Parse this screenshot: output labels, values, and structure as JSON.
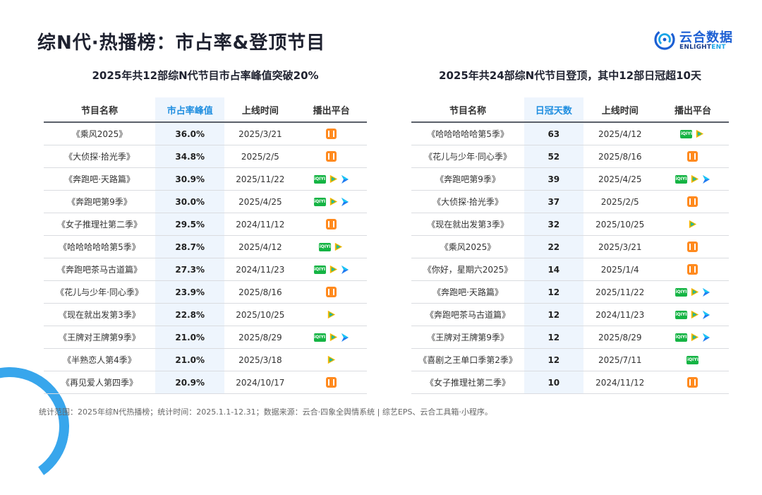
{
  "page": {
    "title": "综N代·热播榜：市占率&登顶节目",
    "footer": "统计范围：2025年综N代热播榜；统计时间：2025.1.1-12.31；数据来源：云合·四象全舆情系统 | 综艺EPS、云合工具箱·小程序。"
  },
  "brand": {
    "name_cn": "云合数据",
    "name_en_a": "ENLIGHT",
    "name_en_b": "ENT"
  },
  "left": {
    "subtitle": "2025年共12部综N代节目市占率峰值突破20%",
    "headers": [
      "节目名称",
      "市占率峰值",
      "上线时间",
      "播出平台"
    ],
    "rows": [
      {
        "name": "《乘风2025》",
        "value": "36.0%",
        "date": "2025/3/21",
        "platforms": [
          "mgtv"
        ]
      },
      {
        "name": "《大侦探·拾光季》",
        "value": "34.8%",
        "date": "2025/2/5",
        "platforms": [
          "mgtv"
        ]
      },
      {
        "name": "《奔跑吧·天路篇》",
        "value": "30.9%",
        "date": "2025/11/22",
        "platforms": [
          "iqiyi",
          "tencent",
          "youku"
        ]
      },
      {
        "name": "《奔跑吧第9季》",
        "value": "30.0%",
        "date": "2025/4/25",
        "platforms": [
          "iqiyi",
          "tencent",
          "youku"
        ]
      },
      {
        "name": "《女子推理社第二季》",
        "value": "29.5%",
        "date": "2024/11/12",
        "platforms": [
          "mgtv"
        ]
      },
      {
        "name": "《哈哈哈哈哈第5季》",
        "value": "28.7%",
        "date": "2025/4/12",
        "platforms": [
          "iqiyi",
          "tencent"
        ]
      },
      {
        "name": "《奔跑吧茶马古道篇》",
        "value": "27.3%",
        "date": "2024/11/23",
        "platforms": [
          "iqiyi",
          "tencent",
          "youku"
        ]
      },
      {
        "name": "《花儿与少年·同心季》",
        "value": "23.9%",
        "date": "2025/8/16",
        "platforms": [
          "mgtv"
        ]
      },
      {
        "name": "《现在就出发第3季》",
        "value": "22.8%",
        "date": "2025/10/25",
        "platforms": [
          "tencent"
        ]
      },
      {
        "name": "《王牌对王牌第9季》",
        "value": "21.0%",
        "date": "2025/8/29",
        "platforms": [
          "iqiyi",
          "tencent",
          "youku"
        ]
      },
      {
        "name": "《半熟恋人第4季》",
        "value": "21.0%",
        "date": "2025/3/18",
        "platforms": [
          "tencent"
        ]
      },
      {
        "name": "《再见爱人第四季》",
        "value": "20.9%",
        "date": "2024/10/17",
        "platforms": [
          "mgtv"
        ]
      }
    ]
  },
  "right": {
    "subtitle": "2025年共24部综N代节目登顶，其中12部日冠超10天",
    "headers": [
      "节目名称",
      "日冠天数",
      "上线时间",
      "播出平台"
    ],
    "rows": [
      {
        "name": "《哈哈哈哈哈第5季》",
        "value": "63",
        "date": "2025/4/12",
        "platforms": [
          "iqiyi",
          "tencent"
        ]
      },
      {
        "name": "《花儿与少年·同心季》",
        "value": "52",
        "date": "2025/8/16",
        "platforms": [
          "mgtv"
        ]
      },
      {
        "name": "《奔跑吧第9季》",
        "value": "39",
        "date": "2025/4/25",
        "platforms": [
          "iqiyi",
          "tencent",
          "youku"
        ]
      },
      {
        "name": "《大侦探·拾光季》",
        "value": "37",
        "date": "2025/2/5",
        "platforms": [
          "mgtv"
        ]
      },
      {
        "name": "《现在就出发第3季》",
        "value": "32",
        "date": "2025/10/25",
        "platforms": [
          "tencent"
        ]
      },
      {
        "name": "《乘风2025》",
        "value": "22",
        "date": "2025/3/21",
        "platforms": [
          "mgtv"
        ]
      },
      {
        "name": "《你好，星期六2025》",
        "value": "14",
        "date": "2025/1/4",
        "platforms": [
          "mgtv"
        ]
      },
      {
        "name": "《奔跑吧·天路篇》",
        "value": "12",
        "date": "2025/11/22",
        "platforms": [
          "iqiyi",
          "tencent",
          "youku"
        ]
      },
      {
        "name": "《奔跑吧茶马古道篇》",
        "value": "12",
        "date": "2024/11/23",
        "platforms": [
          "iqiyi",
          "tencent",
          "youku"
        ]
      },
      {
        "name": "《王牌对王牌第9季》",
        "value": "12",
        "date": "2025/8/29",
        "platforms": [
          "iqiyi",
          "tencent",
          "youku"
        ]
      },
      {
        "name": "《喜剧之王单口季第2季》",
        "value": "12",
        "date": "2025/7/11",
        "platforms": [
          "iqiyi"
        ]
      },
      {
        "name": "《女子推理社第二季》",
        "value": "10",
        "date": "2024/11/12",
        "platforms": [
          "mgtv"
        ]
      }
    ]
  },
  "platform_icons": {
    "mgtv": "mango-tv-icon",
    "iqiyi": "iqiyi-icon",
    "tencent": "tencent-video-icon",
    "youku": "youku-icon"
  },
  "iqiyi_badge_text": "iQIYI",
  "colors": {
    "accent": "#1f8ee0",
    "highlight_bg": "#eef5fd",
    "mgtv": "#ff8a1e",
    "iqiyi": "#15b444",
    "brand": "#1c5fd3"
  }
}
